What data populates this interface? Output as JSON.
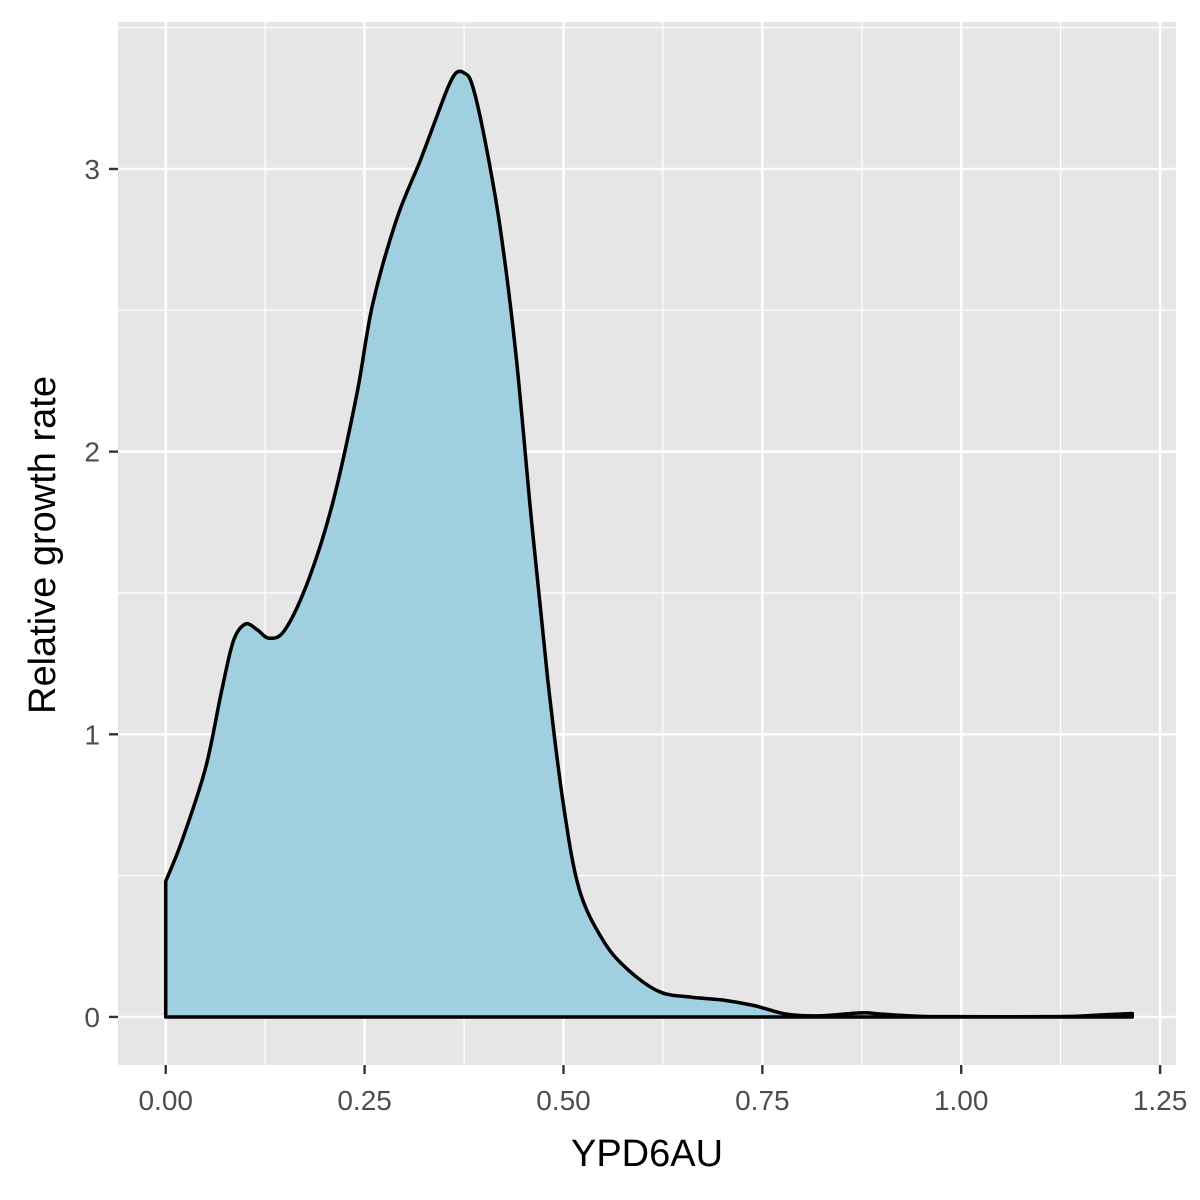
{
  "chart_data": {
    "type": "area",
    "title": "",
    "xlabel": "YPD6AU",
    "ylabel": "Relative growth rate",
    "xlim": [
      -0.06,
      1.27
    ],
    "ylim": [
      -0.17,
      3.52
    ],
    "x_ticks": [
      0.0,
      0.25,
      0.5,
      0.75,
      1.0,
      1.25
    ],
    "x_tick_labels": [
      "0.00",
      "0.25",
      "0.50",
      "0.75",
      "1.00",
      "1.25"
    ],
    "y_ticks": [
      0,
      1,
      2,
      3
    ],
    "y_tick_labels": [
      "0",
      "1",
      "2",
      "3"
    ],
    "grid": true,
    "legend": "none",
    "colors": {
      "fill": "#a0cfe0",
      "line": "#000000",
      "panel": "#e6e6e6",
      "grid": "#ffffff"
    },
    "series": [
      {
        "x": [
          0.0,
          0.02,
          0.05,
          0.07,
          0.085,
          0.1,
          0.115,
          0.13,
          0.15,
          0.18,
          0.21,
          0.24,
          0.26,
          0.29,
          0.32,
          0.34,
          0.355,
          0.365,
          0.375,
          0.385,
          0.4,
          0.42,
          0.44,
          0.46,
          0.48,
          0.5,
          0.52,
          0.55,
          0.58,
          0.62,
          0.66,
          0.7,
          0.74,
          0.78,
          0.82,
          0.86,
          0.88,
          0.9,
          0.95,
          1.0,
          1.1,
          1.15,
          1.18,
          1.215
        ],
        "y": [
          0.48,
          0.62,
          0.88,
          1.15,
          1.33,
          1.39,
          1.37,
          1.34,
          1.37,
          1.55,
          1.82,
          2.2,
          2.52,
          2.82,
          3.03,
          3.18,
          3.29,
          3.34,
          3.34,
          3.3,
          3.12,
          2.8,
          2.35,
          1.75,
          1.2,
          0.75,
          0.45,
          0.27,
          0.17,
          0.09,
          0.07,
          0.06,
          0.04,
          0.01,
          0.004,
          0.012,
          0.015,
          0.01,
          0.002,
          0.001,
          0.001,
          0.003,
          0.008,
          0.012
        ]
      }
    ]
  }
}
